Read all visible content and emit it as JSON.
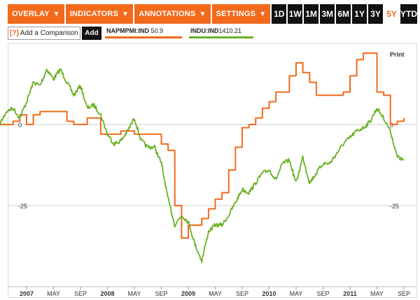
{
  "toolbar": {
    "menus": [
      "OVERLAY",
      "INDICATORS",
      "ANNOTATIONS",
      "SETTINGS"
    ],
    "ranges": [
      "1D",
      "1W",
      "1M",
      "3M",
      "6M",
      "1Y",
      "3Y",
      "5Y",
      "YTD"
    ],
    "active_range": "5Y"
  },
  "compare": {
    "help": "[?]",
    "label": "Add a Comparison",
    "add": "Add"
  },
  "legend": {
    "series1_symbol": "NAPMPMI:IND",
    "series1_value": "50.9",
    "series2_symbol": "INDU:IND",
    "series2_value": "1410.21"
  },
  "print_label": "Print",
  "colors": {
    "accent": "#f26a1b",
    "napm": "#f26a1b",
    "indu": "#6ab023",
    "grid": "#cccccc"
  },
  "chart_data": {
    "type": "line",
    "x_tick_labels": [
      "2007",
      "MAY",
      "SEP",
      "2008",
      "MAY",
      "SEP",
      "2009",
      "MAY",
      "SEP",
      "2010",
      "MAY",
      "SEP",
      "2011",
      "MAY",
      "SEP"
    ],
    "x_tick_dates": [
      "2007-01",
      "2007-05",
      "2007-09",
      "2008-01",
      "2008-05",
      "2008-09",
      "2009-01",
      "2009-05",
      "2009-09",
      "2010-01",
      "2010-05",
      "2010-09",
      "2011-01",
      "2011-05",
      "2011-09"
    ],
    "y_ticks": [
      0,
      -25
    ],
    "y_tick_labels": [
      "0",
      "-25"
    ],
    "ylim": [
      -45,
      22
    ],
    "grid": "horizontal",
    "series": [
      {
        "name": "NAPMPMI:IND",
        "color": "#f26a1b",
        "step": true,
        "dates": [
          "2006-09",
          "2006-10",
          "2006-11",
          "2006-12",
          "2007-01",
          "2007-02",
          "2007-03",
          "2007-04",
          "2007-05",
          "2007-06",
          "2007-07",
          "2007-08",
          "2007-09",
          "2007-10",
          "2007-11",
          "2007-12",
          "2008-01",
          "2008-02",
          "2008-03",
          "2008-04",
          "2008-05",
          "2008-06",
          "2008-07",
          "2008-08",
          "2008-09",
          "2008-10",
          "2008-11",
          "2008-12",
          "2009-01",
          "2009-02",
          "2009-03",
          "2009-04",
          "2009-05",
          "2009-06",
          "2009-07",
          "2009-08",
          "2009-09",
          "2009-10",
          "2009-11",
          "2009-12",
          "2010-01",
          "2010-02",
          "2010-03",
          "2010-04",
          "2010-05",
          "2010-06",
          "2010-07",
          "2010-08",
          "2010-09",
          "2010-10",
          "2010-11",
          "2010-12",
          "2011-01",
          "2011-02",
          "2011-03",
          "2011-04",
          "2011-05",
          "2011-06",
          "2011-07",
          "2011-08",
          "2011-09"
        ],
        "values": [
          0,
          0,
          1,
          3,
          0,
          3,
          4,
          4,
          4,
          4,
          1,
          0,
          0,
          2,
          2,
          -3,
          -3,
          -3,
          -2,
          -2,
          -3,
          -3,
          -3,
          -3,
          -6,
          -8,
          -25,
          -35,
          -31,
          -31,
          -29,
          -26,
          -23,
          -21,
          -14,
          -7,
          -1,
          0,
          2,
          5,
          7,
          10,
          10,
          15,
          19,
          16,
          13,
          9,
          9,
          9,
          9,
          10,
          15,
          20,
          22,
          22,
          10,
          9,
          0,
          1,
          2
        ]
      },
      {
        "name": "INDU:IND",
        "color": "#6ab023",
        "step": false,
        "dates": [
          "2006-09",
          "2006-10",
          "2006-11",
          "2006-12",
          "2007-01",
          "2007-02",
          "2007-03",
          "2007-04",
          "2007-05",
          "2007-06",
          "2007-07",
          "2007-08",
          "2007-09",
          "2007-10",
          "2007-11",
          "2007-12",
          "2008-01",
          "2008-02",
          "2008-03",
          "2008-04",
          "2008-05",
          "2008-06",
          "2008-07",
          "2008-08",
          "2008-09",
          "2008-10",
          "2008-11",
          "2008-12",
          "2009-01",
          "2009-02",
          "2009-03",
          "2009-04",
          "2009-05",
          "2009-06",
          "2009-07",
          "2009-08",
          "2009-09",
          "2009-10",
          "2009-11",
          "2009-12",
          "2010-01",
          "2010-02",
          "2010-03",
          "2010-04",
          "2010-05",
          "2010-06",
          "2010-07",
          "2010-08",
          "2010-09",
          "2010-10",
          "2010-11",
          "2010-12",
          "2011-01",
          "2011-02",
          "2011-03",
          "2011-04",
          "2011-05",
          "2011-06",
          "2011-07",
          "2011-08",
          "2011-09"
        ],
        "values": [
          0,
          4,
          5,
          2,
          7,
          13,
          12,
          17,
          14,
          17,
          13,
          9,
          12,
          5,
          6,
          3,
          -3,
          -6,
          -5,
          -2,
          2,
          -5,
          -7,
          -7,
          -12,
          -23,
          -31,
          -28,
          -30,
          -37,
          -42,
          -33,
          -31,
          -31,
          -28,
          -24,
          -20,
          -21,
          -18,
          -15,
          -14,
          -17,
          -12,
          -11,
          -18,
          -10,
          -18,
          -15,
          -12,
          -12,
          -9,
          -6,
          -4,
          -2,
          -1,
          1,
          5,
          2,
          -2,
          -10,
          -11
        ]
      }
    ]
  }
}
